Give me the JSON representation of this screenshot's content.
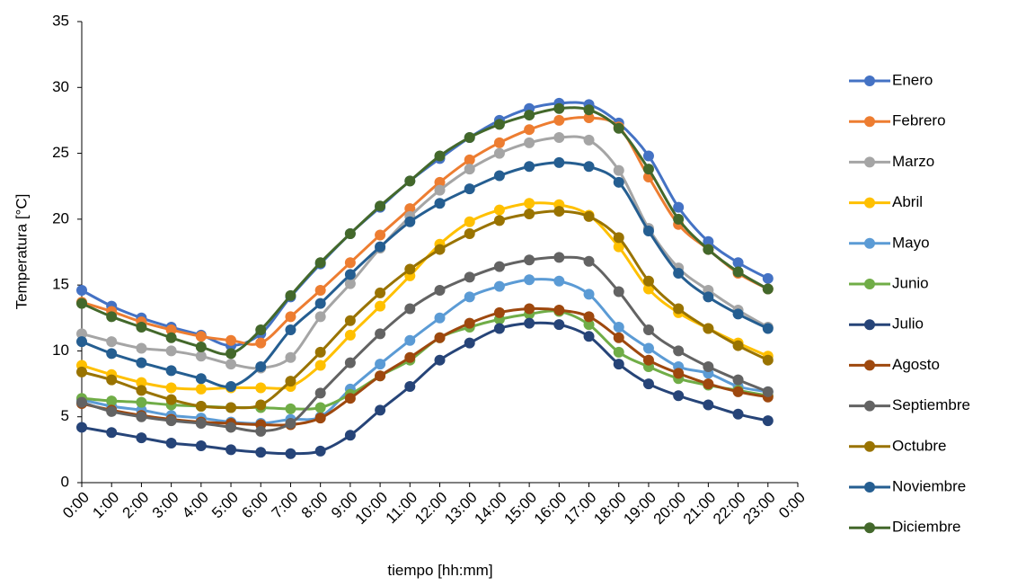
{
  "chart_data": {
    "type": "line",
    "x_label": "tiempo [hh:mm]",
    "y_label": "Temperatura [°C]",
    "categories": [
      "0:00",
      "1:00",
      "2:00",
      "3:00",
      "4:00",
      "5:00",
      "6:00",
      "7:00",
      "8:00",
      "9:00",
      "10:00",
      "11:00",
      "12:00",
      "13:00",
      "14:00",
      "15:00",
      "16:00",
      "17:00",
      "18:00",
      "19:00",
      "20:00",
      "21:00",
      "22:00",
      "23:00",
      "0:00"
    ],
    "ylim": [
      0,
      35
    ],
    "yticks": [
      0,
      5,
      10,
      15,
      20,
      25,
      30,
      35
    ],
    "grid": false,
    "legend": "right",
    "smooth": true,
    "series": [
      {
        "name": "Enero",
        "color": "#4472c4",
        "values": [
          14.6,
          13.4,
          12.5,
          11.8,
          11.2,
          10.4,
          11.3,
          14.1,
          16.6,
          18.9,
          20.9,
          22.9,
          24.6,
          26.2,
          27.5,
          28.4,
          28.8,
          28.7,
          27.3,
          24.8,
          20.9,
          18.3,
          16.7,
          15.5,
          null
        ]
      },
      {
        "name": "Febrero",
        "color": "#ed7d31",
        "values": [
          13.7,
          13.0,
          12.2,
          11.6,
          11.1,
          10.8,
          10.6,
          12.6,
          14.6,
          16.7,
          18.8,
          20.8,
          22.8,
          24.5,
          25.8,
          26.8,
          27.5,
          27.7,
          27.0,
          23.2,
          19.6,
          17.7,
          15.9,
          14.7,
          null
        ]
      },
      {
        "name": "Marzo",
        "color": "#a5a5a5",
        "values": [
          11.3,
          10.7,
          10.2,
          10.0,
          9.6,
          9.0,
          8.7,
          9.5,
          12.6,
          15.1,
          17.8,
          20.2,
          22.2,
          23.8,
          25.0,
          25.8,
          26.2,
          26.0,
          23.7,
          19.3,
          16.3,
          14.6,
          13.1,
          11.8,
          null
        ]
      },
      {
        "name": "Abril",
        "color": "#ffc000",
        "values": [
          8.9,
          8.2,
          7.6,
          7.2,
          7.1,
          7.2,
          7.2,
          7.3,
          8.9,
          11.2,
          13.4,
          15.7,
          18.1,
          19.8,
          20.7,
          21.2,
          21.1,
          20.3,
          17.9,
          14.7,
          12.9,
          11.7,
          10.6,
          9.6,
          null
        ]
      },
      {
        "name": "Mayo",
        "color": "#5b9bd5",
        "values": [
          6.3,
          5.8,
          5.5,
          5.1,
          4.9,
          4.6,
          4.5,
          4.8,
          5.0,
          7.1,
          9.0,
          10.8,
          12.5,
          14.1,
          14.9,
          15.4,
          15.3,
          14.3,
          11.8,
          10.2,
          8.8,
          8.3,
          7.3,
          6.9,
          null
        ]
      },
      {
        "name": "Junio",
        "color": "#70ad47",
        "values": [
          6.4,
          6.2,
          6.1,
          5.9,
          5.8,
          5.7,
          5.7,
          5.6,
          5.7,
          6.7,
          8.1,
          9.3,
          11.0,
          11.8,
          12.4,
          12.8,
          13.0,
          12.0,
          9.9,
          8.8,
          7.9,
          7.4,
          7.0,
          6.6,
          null
        ]
      },
      {
        "name": "Julio",
        "color": "#264478",
        "values": [
          4.2,
          3.8,
          3.4,
          3.0,
          2.8,
          2.5,
          2.3,
          2.2,
          2.4,
          3.6,
          5.5,
          7.3,
          9.3,
          10.6,
          11.7,
          12.1,
          12.0,
          11.1,
          9.0,
          7.5,
          6.6,
          5.9,
          5.2,
          4.7,
          null
        ]
      },
      {
        "name": "Agosto",
        "color": "#9e480e",
        "values": [
          6.0,
          5.5,
          5.1,
          4.8,
          4.6,
          4.5,
          4.4,
          4.4,
          4.9,
          6.4,
          8.1,
          9.5,
          11.0,
          12.1,
          12.9,
          13.2,
          13.1,
          12.6,
          11.0,
          9.3,
          8.3,
          7.5,
          6.9,
          6.5,
          null
        ]
      },
      {
        "name": "Septiembre",
        "color": "#636363",
        "values": [
          6.1,
          5.4,
          5.0,
          4.7,
          4.5,
          4.2,
          3.9,
          4.5,
          6.8,
          9.1,
          11.3,
          13.2,
          14.6,
          15.6,
          16.4,
          16.9,
          17.1,
          16.8,
          14.5,
          11.6,
          10.0,
          8.8,
          7.8,
          6.9,
          null
        ]
      },
      {
        "name": "Octubre",
        "color": "#997300",
        "values": [
          8.4,
          7.8,
          7.0,
          6.3,
          5.8,
          5.7,
          5.9,
          7.7,
          9.9,
          12.3,
          14.4,
          16.2,
          17.7,
          18.9,
          19.9,
          20.4,
          20.6,
          20.2,
          18.6,
          15.3,
          13.2,
          11.7,
          10.4,
          9.3,
          null
        ]
      },
      {
        "name": "Noviembre",
        "color": "#255e91",
        "values": [
          10.7,
          9.8,
          9.1,
          8.5,
          7.9,
          7.3,
          8.8,
          11.6,
          13.6,
          15.8,
          17.9,
          19.8,
          21.2,
          22.3,
          23.3,
          24.0,
          24.3,
          24.0,
          22.8,
          19.1,
          15.9,
          14.1,
          12.8,
          11.7,
          null
        ]
      },
      {
        "name": "Diciembre",
        "color": "#43682b",
        "values": [
          13.6,
          12.6,
          11.8,
          11.0,
          10.3,
          9.8,
          11.6,
          14.2,
          16.7,
          18.9,
          21.0,
          22.9,
          24.8,
          26.2,
          27.2,
          27.9,
          28.4,
          28.3,
          26.9,
          23.8,
          20.0,
          17.7,
          16.0,
          14.7,
          null
        ]
      }
    ]
  }
}
